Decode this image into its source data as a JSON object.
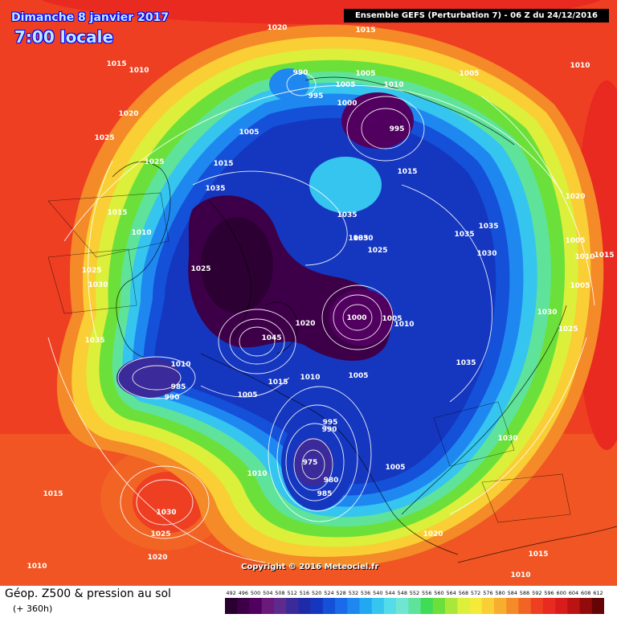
{
  "header": {
    "date_title": "Dimanche 8 janvier 2017",
    "time_title": "7:00 locale",
    "run_info": "Ensemble GEFS  (Perturbation 7)  -  06 Z du 24/12/2016"
  },
  "footer": {
    "field_label": "Géop. Z500 & pression au sol",
    "lead_label": "(+ 360h)",
    "copyright": "Copyright © 2016 Meteociel.fr"
  },
  "legend": {
    "values": [
      "492",
      "496",
      "500",
      "504",
      "508",
      "512",
      "516",
      "520",
      "524",
      "528",
      "532",
      "536",
      "540",
      "544",
      "548",
      "552",
      "556",
      "560",
      "564",
      "568",
      "572",
      "576",
      "580",
      "584",
      "588",
      "592",
      "596",
      "600",
      "604",
      "608",
      "612"
    ],
    "colors": [
      "#2a0030",
      "#3d0048",
      "#52005f",
      "#6a1a7a",
      "#5e2a8c",
      "#3a2a9a",
      "#1f2aa8",
      "#1537c0",
      "#1450d8",
      "#1a6aea",
      "#1f88f0",
      "#22a8f2",
      "#35c5ef",
      "#55dcea",
      "#70e6d2",
      "#5fe39a",
      "#3fdc55",
      "#6ce03a",
      "#a9e83a",
      "#dcef3a",
      "#f5e93a",
      "#f9cf35",
      "#f7ae2e",
      "#f58a28",
      "#f26424",
      "#ee3f22",
      "#e82a20",
      "#d81c1c",
      "#bb1212",
      "#930a0a",
      "#640404"
    ]
  },
  "pressure_labels": [
    {
      "t": "1020"
    },
    {
      "t": "1015"
    },
    {
      "t": "1015"
    },
    {
      "t": "1010"
    },
    {
      "t": "1010"
    },
    {
      "t": "1020"
    },
    {
      "t": "1025"
    },
    {
      "t": "1025"
    },
    {
      "t": "1015"
    },
    {
      "t": "1035"
    },
    {
      "t": "1015"
    },
    {
      "t": "1010"
    },
    {
      "t": "1025"
    },
    {
      "t": "1030"
    },
    {
      "t": "1035"
    },
    {
      "t": "990"
    },
    {
      "t": "995"
    },
    {
      "t": "1005"
    },
    {
      "t": "1000"
    },
    {
      "t": "1005"
    },
    {
      "t": "1010"
    },
    {
      "t": "995"
    },
    {
      "t": "1005"
    },
    {
      "t": "1005"
    },
    {
      "t": "1015"
    },
    {
      "t": "1035"
    },
    {
      "t": "1035"
    },
    {
      "t": "1030"
    },
    {
      "t": "1025"
    },
    {
      "t": "1035"
    },
    {
      "t": "1035"
    },
    {
      "t": "1030"
    },
    {
      "t": "1020"
    },
    {
      "t": "1005"
    },
    {
      "t": "1010"
    },
    {
      "t": "1015"
    },
    {
      "t": "1005"
    },
    {
      "t": "1025"
    },
    {
      "t": "1045"
    },
    {
      "t": "1020"
    },
    {
      "t": "1000"
    },
    {
      "t": "1005"
    },
    {
      "t": "1010"
    },
    {
      "t": "1030"
    },
    {
      "t": "1025"
    },
    {
      "t": "1035"
    },
    {
      "t": "1015"
    },
    {
      "t": "1010"
    },
    {
      "t": "1005"
    },
    {
      "t": "985"
    },
    {
      "t": "990"
    },
    {
      "t": "1010"
    },
    {
      "t": "1005"
    },
    {
      "t": "995"
    },
    {
      "t": "990"
    },
    {
      "t": "975"
    },
    {
      "t": "980"
    },
    {
      "t": "985"
    },
    {
      "t": "1005"
    },
    {
      "t": "1030"
    },
    {
      "t": "1010"
    },
    {
      "t": "1015"
    },
    {
      "t": "1030"
    },
    {
      "t": "1025"
    },
    {
      "t": "1020"
    },
    {
      "t": "1010"
    },
    {
      "t": "1020"
    },
    {
      "t": "1015"
    },
    {
      "t": "1010"
    }
  ]
}
